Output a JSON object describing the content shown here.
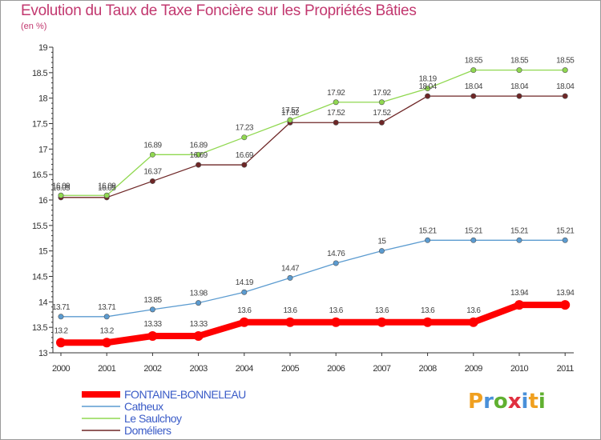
{
  "chart_data": {
    "type": "line",
    "title": "Evolution du Taux de Taxe Foncière sur les Propriétés Bâties",
    "unit_label": "(en %)",
    "xlabel": "",
    "ylabel": "",
    "x": [
      "2000",
      "2001",
      "2002",
      "2003",
      "2004",
      "2005",
      "2006",
      "2007",
      "2008",
      "2009",
      "2010",
      "2011"
    ],
    "ylim": [
      13,
      19
    ],
    "yticks": [
      "13",
      "13.5",
      "14",
      "14.5",
      "15",
      "15.5",
      "16",
      "16.5",
      "17",
      "17.5",
      "18",
      "18.5",
      "19"
    ],
    "grid": false,
    "legend_position": "bottom-left",
    "series": [
      {
        "name": "FONTAINE-BONNELEAU",
        "color": "#ff0000",
        "values": [
          13.2,
          13.2,
          13.33,
          13.33,
          13.6,
          13.6,
          13.6,
          13.6,
          13.6,
          13.6,
          13.94,
          13.94
        ],
        "labels": [
          "13.2",
          "13.2",
          "13.33",
          "13.33",
          "13.6",
          "13.6",
          "13.6",
          "13.6",
          "13.6",
          "13.6",
          "13.94",
          "13.94"
        ]
      },
      {
        "name": "Catheux",
        "color": "#5b9bd0",
        "values": [
          13.71,
          13.71,
          13.85,
          13.98,
          14.19,
          14.47,
          14.76,
          15,
          15.21,
          15.21,
          15.21,
          15.21
        ],
        "labels": [
          "13.71",
          "13.71",
          "13.85",
          "13.98",
          "14.19",
          "14.47",
          "14.76",
          "15",
          "15.21",
          "15.21",
          "15.21",
          "15.21"
        ]
      },
      {
        "name": "Le Saulchoy",
        "color": "#90d850",
        "values": [
          16.09,
          16.09,
          16.89,
          16.89,
          17.23,
          17.57,
          17.92,
          17.92,
          18.19,
          18.55,
          18.55,
          18.55
        ],
        "labels": [
          "16.09",
          "16.09",
          "16.89",
          "16.89",
          "17.23",
          "17.57",
          "17.92",
          "17.92",
          "18.19",
          "18.55",
          "18.55",
          "18.55"
        ]
      },
      {
        "name": "Doméliers",
        "color": "#6e2626",
        "values": [
          16.05,
          16.05,
          16.37,
          16.69,
          16.69,
          17.52,
          17.52,
          17.52,
          18.04,
          18.04,
          18.04,
          18.04
        ],
        "labels": [
          "16.05",
          "16.05",
          "16.37",
          "16.69",
          "16.69",
          "17.52",
          "17.52",
          "17.52",
          "18.04",
          "18.04",
          "18.04",
          "18.04"
        ]
      }
    ]
  },
  "branding": {
    "logo_letters": [
      "P",
      "r",
      "o",
      "x",
      "i",
      "t",
      "i"
    ],
    "logo_colors": [
      "#f0a020",
      "#4a90d9",
      "#60b030",
      "#e03040",
      "#4a90d9",
      "#f0a020",
      "#60b030"
    ]
  }
}
